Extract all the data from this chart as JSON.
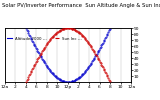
{
  "title": "Solar PV/Inverter Performance  Sun Altitude Angle & Sun Incidence Angle on PV Panels",
  "legend_blue": "Altitude 2000 ---",
  "legend_red": "Sun Inc ---",
  "x_ticks": [
    0,
    2,
    4,
    6,
    8,
    10,
    12,
    14,
    16,
    18,
    20,
    22,
    24
  ],
  "x_labels": [
    "12a",
    "2",
    "4",
    "6",
    "8",
    "10",
    "12p",
    "2",
    "4",
    "6",
    "8",
    "10",
    "12a"
  ],
  "y_right_ticks": [
    10,
    20,
    30,
    40,
    50,
    60,
    70,
    80,
    90
  ],
  "background_color": "#ffffff",
  "blue_color": "#0000cc",
  "red_color": "#cc0000",
  "grid_color": "#bbbbbb",
  "title_fontsize": 3.8,
  "tick_fontsize": 3.2,
  "legend_fontsize": 2.8,
  "markersize": 0.9
}
